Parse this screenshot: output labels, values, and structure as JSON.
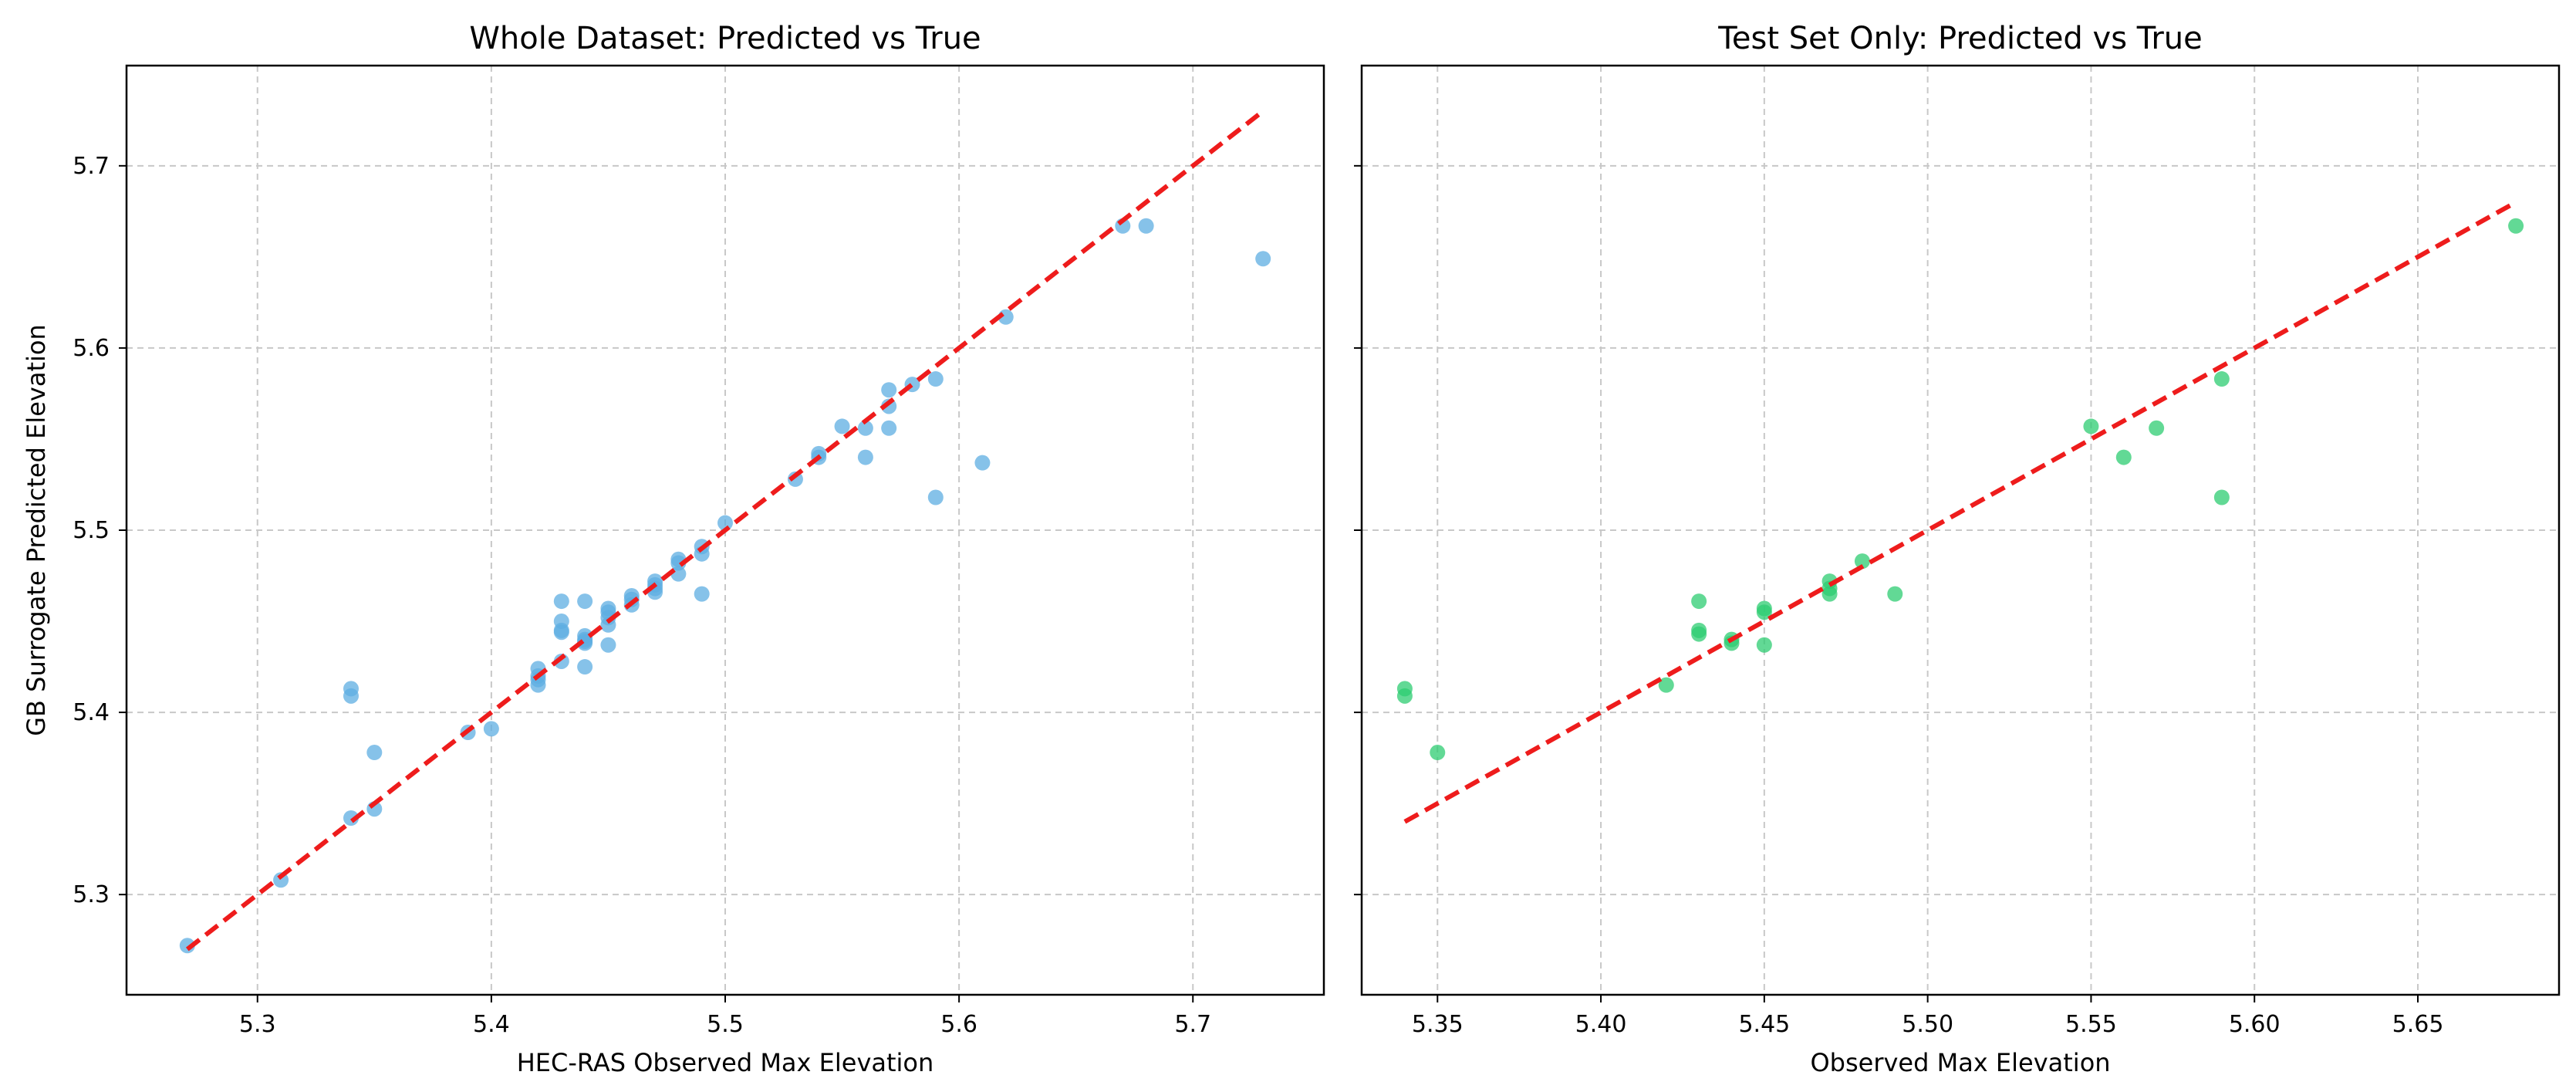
{
  "chart_data": [
    {
      "type": "scatter",
      "title": "Whole Dataset: Predicted vs True",
      "xlabel": "HEC-RAS Observed Max Elevation",
      "ylabel": "GB Surrogate Predicted Elevation",
      "xlim": [
        5.244,
        5.756
      ],
      "ylim": [
        5.245,
        5.755
      ],
      "grid": true,
      "xticks": [
        "5.3",
        "5.4",
        "5.5",
        "5.6",
        "5.7"
      ],
      "xtick_values": [
        5.3,
        5.4,
        5.5,
        5.6,
        5.7
      ],
      "yticks": [
        "5.3",
        "5.4",
        "5.5",
        "5.6",
        "5.7"
      ],
      "ytick_values": [
        5.3,
        5.4,
        5.5,
        5.6,
        5.7
      ],
      "point_color": "#5dade2",
      "line_color": "#ee1c1c",
      "reference_line": {
        "x": [
          5.27,
          5.73
        ],
        "y": [
          5.27,
          5.73
        ]
      },
      "series": [
        {
          "x": [
            5.27,
            5.31,
            5.34,
            5.34,
            5.34,
            5.35,
            5.35,
            5.39,
            5.4,
            5.42,
            5.42,
            5.42,
            5.42,
            5.43,
            5.43,
            5.43,
            5.43,
            5.43,
            5.44,
            5.44,
            5.44,
            5.44,
            5.44,
            5.44,
            5.45,
            5.45,
            5.45,
            5.45,
            5.45,
            5.46,
            5.46,
            5.46,
            5.47,
            5.47,
            5.47,
            5.47,
            5.48,
            5.48,
            5.48,
            5.49,
            5.49,
            5.49,
            5.5,
            5.53,
            5.54,
            5.54,
            5.55,
            5.56,
            5.56,
            5.57,
            5.57,
            5.57,
            5.58,
            5.59,
            5.59,
            5.61,
            5.62,
            5.67,
            5.68,
            5.73
          ],
          "y": [
            5.272,
            5.308,
            5.342,
            5.409,
            5.413,
            5.347,
            5.378,
            5.389,
            5.391,
            5.415,
            5.418,
            5.42,
            5.424,
            5.428,
            5.444,
            5.445,
            5.45,
            5.461,
            5.425,
            5.438,
            5.439,
            5.44,
            5.442,
            5.461,
            5.437,
            5.448,
            5.452,
            5.455,
            5.457,
            5.459,
            5.462,
            5.464,
            5.466,
            5.468,
            5.47,
            5.472,
            5.476,
            5.482,
            5.484,
            5.465,
            5.487,
            5.491,
            5.504,
            5.528,
            5.54,
            5.542,
            5.557,
            5.54,
            5.556,
            5.556,
            5.568,
            5.577,
            5.58,
            5.518,
            5.583,
            5.537,
            5.617,
            5.667,
            5.667,
            5.649
          ]
        }
      ]
    },
    {
      "type": "scatter",
      "title": "Test Set Only: Predicted vs True",
      "xlabel": "Observed Max Elevation",
      "ylabel": "",
      "xlim": [
        5.3268,
        5.6932
      ],
      "ylim": [
        5.245,
        5.755
      ],
      "grid": true,
      "xticks": [
        "5.35",
        "5.40",
        "5.45",
        "5.50",
        "5.55",
        "5.60",
        "5.65"
      ],
      "xtick_values": [
        5.35,
        5.4,
        5.45,
        5.5,
        5.55,
        5.6,
        5.65
      ],
      "yticks": [
        "",
        "",
        "",
        "",
        ""
      ],
      "ytick_values": [
        5.3,
        5.4,
        5.5,
        5.6,
        5.7
      ],
      "point_color": "#2ecc71",
      "line_color": "#ee1c1c",
      "reference_line": {
        "x": [
          5.34,
          5.68
        ],
        "y": [
          5.34,
          5.68
        ]
      },
      "series": [
        {
          "x": [
            5.34,
            5.34,
            5.35,
            5.42,
            5.43,
            5.43,
            5.43,
            5.44,
            5.44,
            5.45,
            5.45,
            5.45,
            5.47,
            5.47,
            5.47,
            5.48,
            5.49,
            5.55,
            5.56,
            5.57,
            5.59,
            5.59,
            5.68
          ],
          "y": [
            5.409,
            5.413,
            5.378,
            5.415,
            5.443,
            5.445,
            5.461,
            5.438,
            5.44,
            5.437,
            5.455,
            5.457,
            5.465,
            5.468,
            5.472,
            5.483,
            5.465,
            5.557,
            5.54,
            5.556,
            5.518,
            5.583,
            5.667
          ]
        }
      ]
    }
  ]
}
